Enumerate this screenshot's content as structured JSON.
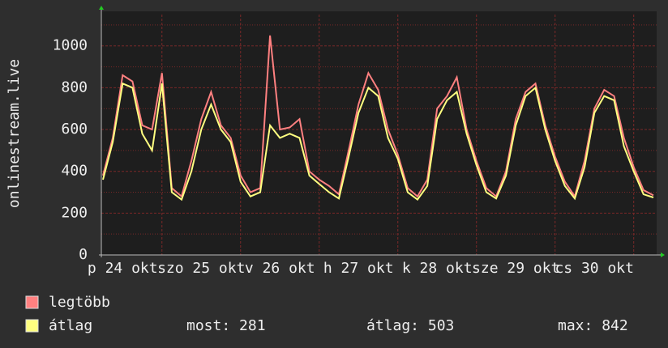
{
  "chart_data": {
    "type": "line",
    "y_label": "onlinestream.live",
    "x": [
      6,
      9,
      12,
      15,
      18,
      21,
      24,
      27,
      30,
      33,
      36,
      39,
      42,
      45,
      48,
      51,
      54,
      57,
      60,
      63,
      66,
      69,
      72,
      75,
      78,
      81,
      84,
      87,
      90,
      93,
      96,
      99,
      102,
      105,
      108,
      111,
      114,
      117,
      120,
      123,
      126,
      129,
      132,
      135,
      138,
      141,
      144,
      147,
      150,
      153,
      156,
      159,
      162,
      165,
      168,
      171,
      174
    ],
    "series": [
      {
        "name": "legtöbb",
        "color": "#ff8080",
        "values": [
          380,
          560,
          860,
          830,
          620,
          600,
          870,
          320,
          280,
          450,
          650,
          780,
          620,
          560,
          380,
          300,
          320,
          1050,
          600,
          610,
          650,
          400,
          360,
          330,
          290,
          500,
          720,
          870,
          790,
          600,
          480,
          320,
          280,
          360,
          700,
          760,
          850,
          600,
          450,
          320,
          280,
          400,
          650,
          780,
          820,
          620,
          470,
          350,
          280,
          450,
          700,
          790,
          760,
          560,
          420,
          310,
          285
        ]
      },
      {
        "name": "átlag",
        "color": "#ffff80",
        "values": [
          360,
          540,
          820,
          800,
          580,
          500,
          820,
          300,
          265,
          400,
          600,
          720,
          600,
          540,
          350,
          280,
          300,
          620,
          560,
          580,
          560,
          380,
          340,
          300,
          270,
          470,
          680,
          800,
          760,
          560,
          460,
          300,
          265,
          330,
          650,
          740,
          780,
          580,
          430,
          300,
          270,
          380,
          620,
          760,
          800,
          600,
          450,
          330,
          270,
          420,
          680,
          760,
          740,
          520,
          400,
          290,
          275
        ]
      }
    ],
    "xlim": [
      5.5,
      175
    ],
    "xticks": [
      {
        "value": 12,
        "label": "p 24 okt"
      },
      {
        "value": 36,
        "label": "szo 25 okt"
      },
      {
        "value": 60,
        "label": "v 26 okt"
      },
      {
        "value": 84,
        "label": "h 27 okt"
      },
      {
        "value": 108,
        "label": "k 28 okt"
      },
      {
        "value": 132,
        "label": "sze 29 okt"
      },
      {
        "value": 156,
        "label": "cs 30 okt"
      }
    ],
    "x_grid": [
      24,
      48,
      72,
      96,
      120,
      144,
      168
    ],
    "ylim": [
      0,
      1150
    ],
    "yticks": [
      0,
      200,
      400,
      600,
      800,
      1000
    ],
    "y_minor_ticks": [
      100,
      300,
      500,
      700,
      900,
      1100
    ],
    "grid": true,
    "stats": [
      {
        "label": "most:",
        "value": 281
      },
      {
        "label": "átlag:",
        "value": 503
      },
      {
        "label": "max:",
        "value": 842
      }
    ]
  }
}
